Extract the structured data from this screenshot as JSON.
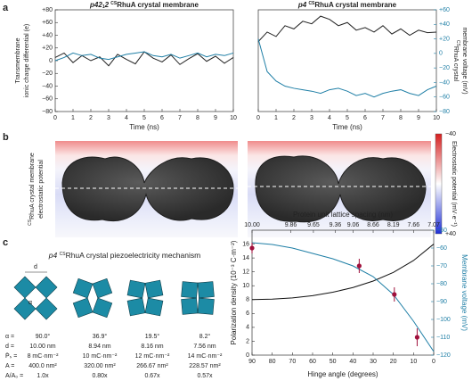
{
  "panel_labels": [
    "a",
    "b",
    "c"
  ],
  "chart_data": [
    {
      "type": "line",
      "title": {
        "italic": "p42",
        "sub": "1",
        "italic2": "2 ",
        "sup": "CS",
        "rest": "RhuA crystal membrane"
      },
      "xlabel": "Time (ns)",
      "ylabel": [
        "Transmembrane",
        "ionic charge differential (e)"
      ],
      "x": [
        0,
        0.5,
        1,
        1.5,
        2,
        2.5,
        3,
        3.5,
        4,
        4.5,
        5,
        5.5,
        6,
        6.5,
        7,
        7.5,
        8,
        8.5,
        9,
        9.5,
        10
      ],
      "xlim": [
        0,
        10
      ],
      "xticks": [
        0,
        1,
        2,
        3,
        4,
        5,
        6,
        7,
        8,
        9,
        10
      ],
      "ylim": [
        -80,
        80
      ],
      "yticks": [
        {
          "value": -80,
          "label": "−80"
        },
        {
          "value": -60,
          "label": "−60"
        },
        {
          "value": -40,
          "label": "−40"
        },
        {
          "value": -20,
          "label": "−20"
        },
        0,
        {
          "value": 20,
          "label": "+20"
        },
        {
          "value": 40,
          "label": "+40"
        },
        {
          "value": 60,
          "label": "+60"
        },
        {
          "value": 80,
          "label": "+80"
        }
      ],
      "series": [
        {
          "color": "#222222",
          "values": [
            5,
            12,
            -3,
            8,
            0,
            6,
            -8,
            10,
            2,
            -5,
            14,
            4,
            -2,
            9,
            -6,
            3,
            11,
            -1,
            7,
            -4,
            5
          ]
        },
        {
          "color": "#1f7fa6",
          "values": [
            0,
            5,
            12,
            8,
            10,
            4,
            2,
            6,
            10,
            12,
            14,
            8,
            6,
            10,
            4,
            8,
            12,
            6,
            10,
            8,
            12
          ]
        }
      ]
    },
    {
      "type": "line",
      "title": {
        "italic": "p4 ",
        "sup": "CS",
        "rest": "RhuA crystal membrane"
      },
      "xlabel": "Time (ns)",
      "y2label": {
        "sup": "CS",
        "line1": "RhuA crystal",
        "line2": "membrane voltage (mV)"
      },
      "x": [
        0,
        0.5,
        1,
        1.5,
        2,
        2.5,
        3,
        3.5,
        4,
        4.5,
        5,
        5.5,
        6,
        6.5,
        7,
        7.5,
        8,
        8.5,
        9,
        9.5,
        10
      ],
      "xlim": [
        0,
        10
      ],
      "xticks": [
        0,
        1,
        2,
        3,
        4,
        5,
        6,
        7,
        8,
        9,
        10
      ],
      "ylim": [
        -80,
        80
      ],
      "y2lim": [
        -80,
        60
      ],
      "y2ticks": [
        {
          "value": -80,
          "label": "−80"
        },
        {
          "value": -60,
          "label": "−60"
        },
        {
          "value": -40,
          "label": "−40"
        },
        {
          "value": -20,
          "label": "−20"
        },
        0,
        {
          "value": 20,
          "label": "+20"
        },
        {
          "value": 40,
          "label": "+40"
        },
        {
          "value": 60,
          "label": "+60"
        }
      ],
      "series": [
        {
          "color": "#222222",
          "values": [
            30,
            45,
            38,
            55,
            50,
            62,
            58,
            70,
            65,
            55,
            60,
            48,
            52,
            45,
            55,
            42,
            50,
            40,
            48,
            44,
            45
          ]
        },
        {
          "color": "#1f7fa6",
          "axis": "y2",
          "values": [
            20,
            -25,
            -38,
            -45,
            -48,
            -50,
            -52,
            -55,
            -50,
            -48,
            -52,
            -58,
            -55,
            -60,
            -55,
            -52,
            -50,
            -55,
            -58,
            -50,
            -45
          ]
        }
      ]
    },
    {
      "type": "line",
      "xlabel": "Hinge angle (degrees)",
      "x2label": "Protein unit lattice spacing (nm)",
      "ylabel": "Polarization density (10⁻³ C·m⁻²)",
      "y2label": "Membrane voltage (mV)",
      "x": [
        90,
        80,
        70,
        60,
        50,
        40,
        30,
        20,
        10,
        0
      ],
      "xlim": [
        90,
        0
      ],
      "xticks": [
        90,
        80,
        70,
        60,
        50,
        40,
        30,
        20,
        10,
        0
      ],
      "x2ticks": [
        {
          "value": 10,
          "label": "10.00"
        },
        9.86,
        9.65,
        9.36,
        9.06,
        8.66,
        8.19,
        7.66,
        7.07
      ],
      "ylim": [
        0,
        18
      ],
      "yticks": [
        0,
        2,
        4,
        6,
        8,
        10,
        12,
        14,
        16
      ],
      "y2lim": [
        -120,
        -50
      ],
      "y2ticks": [
        {
          "value": -50,
          "label": "−50"
        },
        {
          "value": -60,
          "label": "−60"
        },
        {
          "value": -70,
          "label": "−70"
        },
        {
          "value": -80,
          "label": "−80"
        },
        {
          "value": -90,
          "label": "−90"
        },
        {
          "value": -100,
          "label": "−100"
        },
        {
          "value": -110,
          "label": "−110"
        },
        {
          "value": -120,
          "label": "−120"
        }
      ],
      "series": [
        {
          "color": "#111111",
          "values": [
            8,
            8.06,
            8.25,
            8.57,
            9.06,
            9.74,
            10.67,
            11.92,
            13.63,
            16
          ]
        },
        {
          "color": "#1f7fa6",
          "axis": "y2",
          "values": [
            -57,
            -58,
            -60,
            -63,
            -66,
            -70,
            -76,
            -86,
            -101,
            -118
          ]
        }
      ],
      "points": {
        "color": "#a0103c",
        "axis": "y2",
        "x": [
          90,
          36.9,
          19.5,
          8.2
        ],
        "values": [
          -60,
          -70,
          -86,
          -110
        ],
        "errors": [
          3,
          4,
          4,
          5
        ]
      }
    }
  ],
  "panel_b": {
    "ylabel": {
      "sup": "CS",
      "line1": "RhuA crystal membrane",
      "line2": "electrostatic potential"
    },
    "colorbar_label": "Electrostatic potential (mV·e⁻¹)",
    "colorbar_top": "−40",
    "colorbar_bottom": "+40"
  },
  "panel_c": {
    "title": {
      "italic": "p4 ",
      "sup": "CS",
      "rest": "RhuA crystal piezoelectricity mechanism"
    },
    "d_label": "d",
    "alpha_label": "α",
    "row_labels": [
      "α =",
      "d =",
      "P̄ₛ =",
      "A =",
      "A/A₀ ="
    ],
    "columns": [
      [
        "90.0°",
        "10.00 nm",
        "8 mC·nm⁻²",
        "400.0 nm²",
        "1.0x"
      ],
      [
        "36.9°",
        "8.94 nm",
        "10 mC·nm⁻²",
        "320.00 nm²",
        "0.80x"
      ],
      [
        "19.5°",
        "8.16 nm",
        "12 mC·nm⁻²",
        "266.67 nm²",
        "0.67x"
      ],
      [
        "8.2°",
        "7.56 nm",
        "14 mC·nm⁻²",
        "228.57 nm²",
        "0.57x"
      ]
    ]
  }
}
